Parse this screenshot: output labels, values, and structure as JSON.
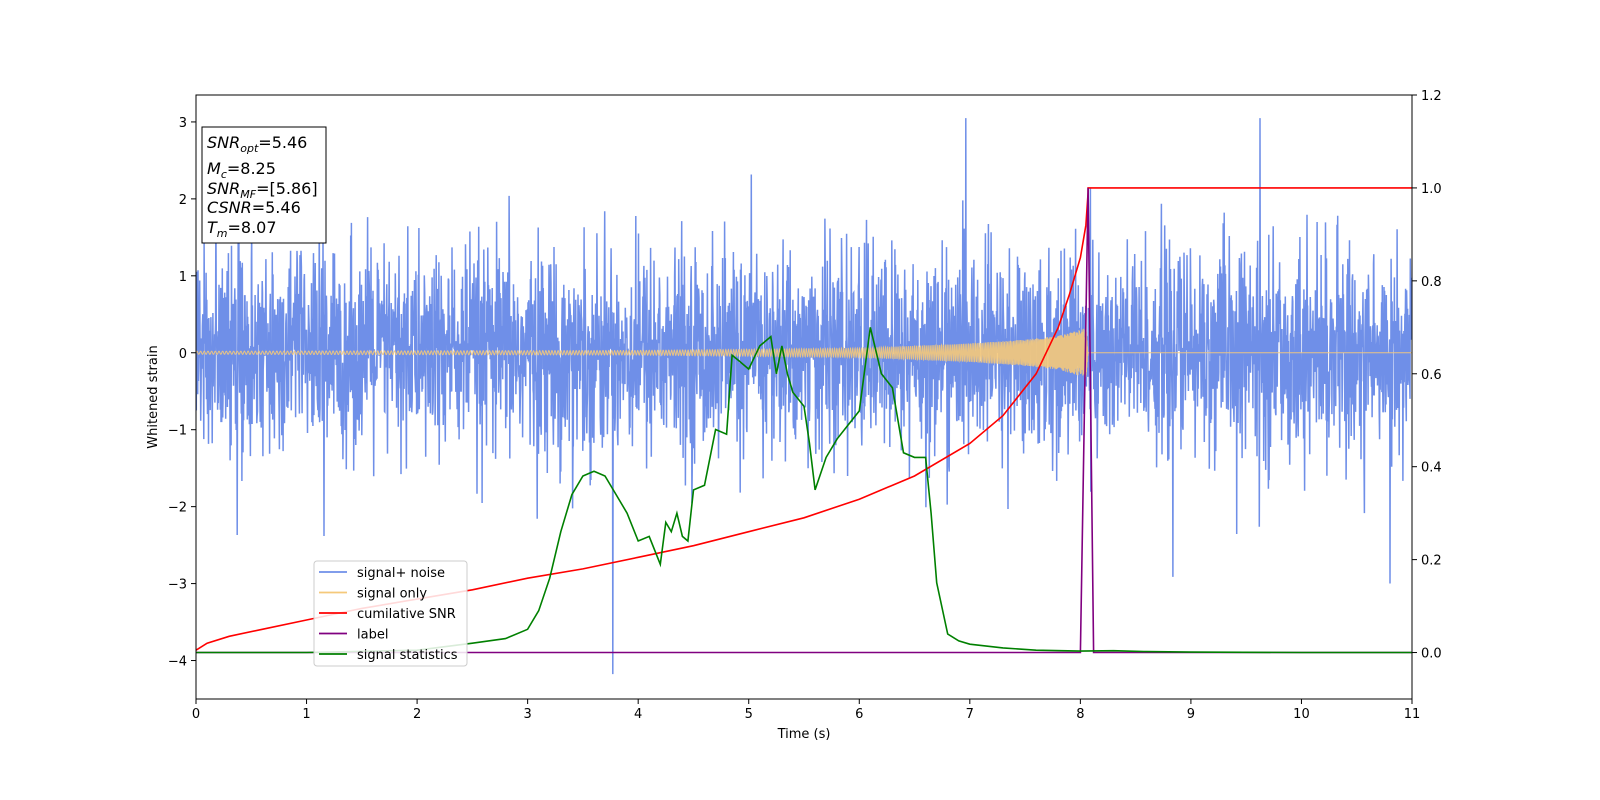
{
  "chart_data": {
    "type": "line",
    "xlabel": "Time (s)",
    "ylabel": "Whitened strain",
    "xlim": [
      0,
      11
    ],
    "ylim_left": [
      -4.5,
      3.35
    ],
    "ylim_right": [
      -0.1,
      1.2
    ],
    "x_ticks": [
      "0",
      "1",
      "2",
      "3",
      "4",
      "5",
      "6",
      "7",
      "8",
      "9",
      "10",
      "11"
    ],
    "y_ticks_left": [
      "3",
      "2",
      "1",
      "0",
      "−1",
      "−2",
      "−3",
      "−4"
    ],
    "y_ticks_right": [
      "1.2",
      "1.0",
      "0.8",
      "0.6",
      "0.4",
      "0.2",
      "0.0"
    ],
    "info_box": {
      "lines": [
        {
          "name": "SNR",
          "sub": "opt",
          "value": "=5.46"
        },
        {
          "name": "M",
          "sub": "c",
          "value": "=8.25"
        },
        {
          "name": "SNR",
          "sub": "MF",
          "value": "=[5.86]"
        },
        {
          "name": "CSNR",
          "sub": "",
          "value": "=5.46"
        },
        {
          "name": "T",
          "sub": "m",
          "value": "=8.07"
        }
      ]
    },
    "legend": {
      "placement": "lower-left",
      "entries": [
        {
          "label": "signal+ noise",
          "color": "#6f8fe8"
        },
        {
          "label": "signal only",
          "color": "#f5c97a"
        },
        {
          "label": "cumilative SNR",
          "color": "#ff0000"
        },
        {
          "label": "label",
          "color": "#800080"
        },
        {
          "label": "signal statistics",
          "color": "#008000"
        }
      ]
    },
    "series": [
      {
        "name": "signal+ noise",
        "axis": "left",
        "color": "#6f8fe8",
        "description_only": "dense noisy whitened strain, amplitude mostly within ±2, peaks near 3",
        "noise_std": 0.65,
        "x_range": [
          0,
          11
        ]
      },
      {
        "name": "signal only",
        "axis": "left",
        "color": "#f5c97a",
        "chirp_end": 8.07,
        "envelope": [
          [
            0,
            0.02
          ],
          [
            4,
            0.03
          ],
          [
            6,
            0.06
          ],
          [
            7,
            0.12
          ],
          [
            7.5,
            0.17
          ],
          [
            7.8,
            0.22
          ],
          [
            8.0,
            0.3
          ],
          [
            8.07,
            0.33
          ],
          [
            8.08,
            0
          ]
        ]
      },
      {
        "name": "cumilative SNR",
        "axis": "right",
        "color": "#ff0000",
        "x": [
          0,
          0.1,
          0.3,
          0.6,
          1.0,
          1.5,
          2.0,
          2.5,
          3.0,
          3.5,
          4.0,
          4.5,
          5.0,
          5.5,
          6.0,
          6.5,
          7.0,
          7.3,
          7.6,
          7.8,
          7.9,
          8.0,
          8.05,
          8.07,
          8.07,
          11
        ],
        "y": [
          0.005,
          0.02,
          0.035,
          0.05,
          0.07,
          0.095,
          0.115,
          0.135,
          0.16,
          0.18,
          0.205,
          0.23,
          0.26,
          0.29,
          0.33,
          0.38,
          0.45,
          0.51,
          0.6,
          0.7,
          0.77,
          0.85,
          0.92,
          0.99,
          1.0,
          1.0
        ]
      },
      {
        "name": "label",
        "axis": "right",
        "color": "#800080",
        "x": [
          0,
          8.0,
          8.07,
          8.12,
          11
        ],
        "y": [
          0,
          0,
          1.0,
          0,
          0
        ]
      },
      {
        "name": "signal statistics",
        "axis": "right",
        "color": "#008000",
        "x": [
          0,
          1.0,
          2.0,
          2.5,
          2.8,
          3.0,
          3.1,
          3.2,
          3.3,
          3.4,
          3.5,
          3.6,
          3.7,
          3.8,
          3.9,
          4.0,
          4.1,
          4.2,
          4.25,
          4.3,
          4.35,
          4.4,
          4.45,
          4.5,
          4.6,
          4.7,
          4.8,
          4.85,
          4.9,
          5.0,
          5.1,
          5.2,
          5.25,
          5.3,
          5.35,
          5.4,
          5.5,
          5.55,
          5.6,
          5.7,
          5.8,
          5.9,
          6.0,
          6.1,
          6.2,
          6.3,
          6.4,
          6.5,
          6.6,
          6.65,
          6.7,
          6.8,
          6.9,
          7.0,
          7.3,
          7.6,
          8.0,
          8.3,
          8.6,
          9.0,
          10.0,
          11.0
        ],
        "y": [
          0,
          0,
          0.005,
          0.02,
          0.03,
          0.05,
          0.09,
          0.16,
          0.26,
          0.34,
          0.38,
          0.39,
          0.38,
          0.34,
          0.3,
          0.24,
          0.25,
          0.19,
          0.28,
          0.26,
          0.3,
          0.25,
          0.24,
          0.35,
          0.36,
          0.48,
          0.47,
          0.64,
          0.63,
          0.61,
          0.66,
          0.68,
          0.6,
          0.66,
          0.6,
          0.56,
          0.53,
          0.45,
          0.35,
          0.42,
          0.46,
          0.49,
          0.52,
          0.7,
          0.6,
          0.57,
          0.43,
          0.42,
          0.42,
          0.3,
          0.15,
          0.04,
          0.025,
          0.018,
          0.01,
          0.005,
          0.003,
          0.004,
          0.002,
          0.001,
          0.0,
          0.0
        ]
      }
    ]
  }
}
